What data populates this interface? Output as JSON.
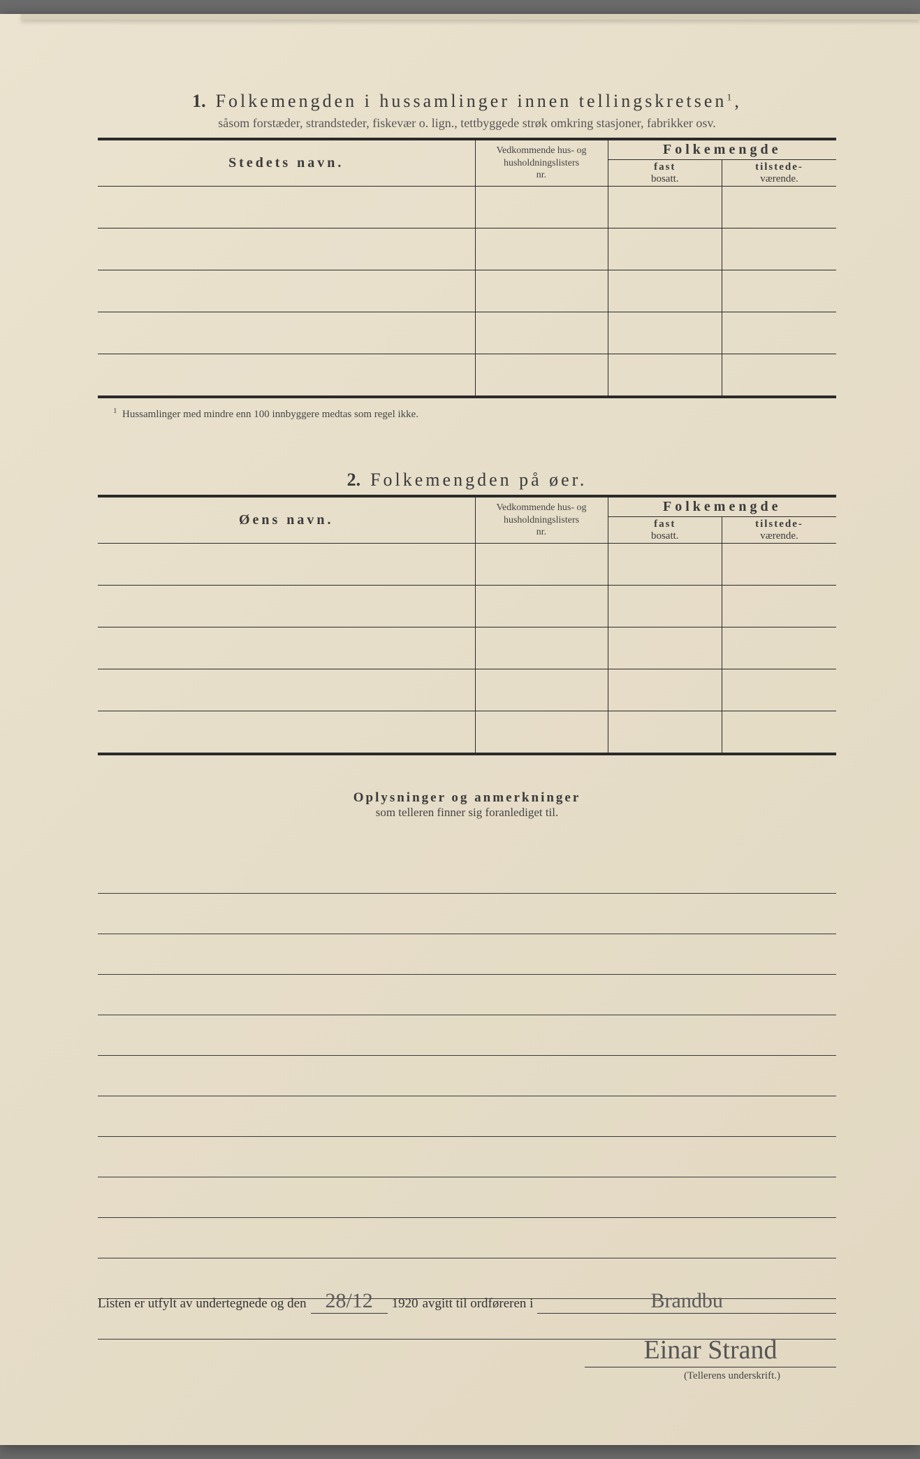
{
  "page": {
    "background_color": "#e8e0cc",
    "text_color": "#3a3a3a",
    "rule_color": "#2a2a2a"
  },
  "section1": {
    "number": "1.",
    "title": "Folkemengden i hussamlinger innen tellingskretsen",
    "title_superscript": "1",
    "title_trailing": ",",
    "subtitle": "såsom forstæder, strandsteder, fiskevær o. lign., tettbyggede strøk omkring stasjoner, fabrikker osv.",
    "col_name": "Stedets navn.",
    "col_ved_line1": "Vedkommende hus- og",
    "col_ved_line2": "husholdningslisters",
    "col_ved_line3": "nr.",
    "col_folk": "Folkemengde",
    "col_fast_b": "fast",
    "col_fast_s": "bosatt.",
    "col_til_b": "tilstede-",
    "col_til_s": "værende.",
    "blank_rows": 5,
    "footnote_marker": "1",
    "footnote": "Hussamlinger med mindre enn 100 innbyggere medtas som regel ikke."
  },
  "section2": {
    "number": "2.",
    "title": "Folkemengden på øer.",
    "col_name": "Øens navn.",
    "col_ved_line1": "Vedkommende hus- og",
    "col_ved_line2": "husholdningslisters",
    "col_ved_line3": "nr.",
    "col_folk": "Folkemengde",
    "col_fast_b": "fast",
    "col_fast_s": "bosatt.",
    "col_til_b": "tilstede-",
    "col_til_s": "værende.",
    "blank_rows": 5
  },
  "remarks": {
    "title_bold": "Oplysninger og anmerkninger",
    "title_sub": "som telleren finner sig foranlediget til.",
    "line_count": 12
  },
  "bottom": {
    "text_before_date": "Listen er utfylt av undertegnede og den",
    "date_written": "28/12",
    "year": "1920",
    "text_after_year": "avgitt til ordføreren i",
    "place_written": "Brandbu",
    "signature": "Einar Strand",
    "signature_caption": "(Tellerens underskrift.)"
  }
}
